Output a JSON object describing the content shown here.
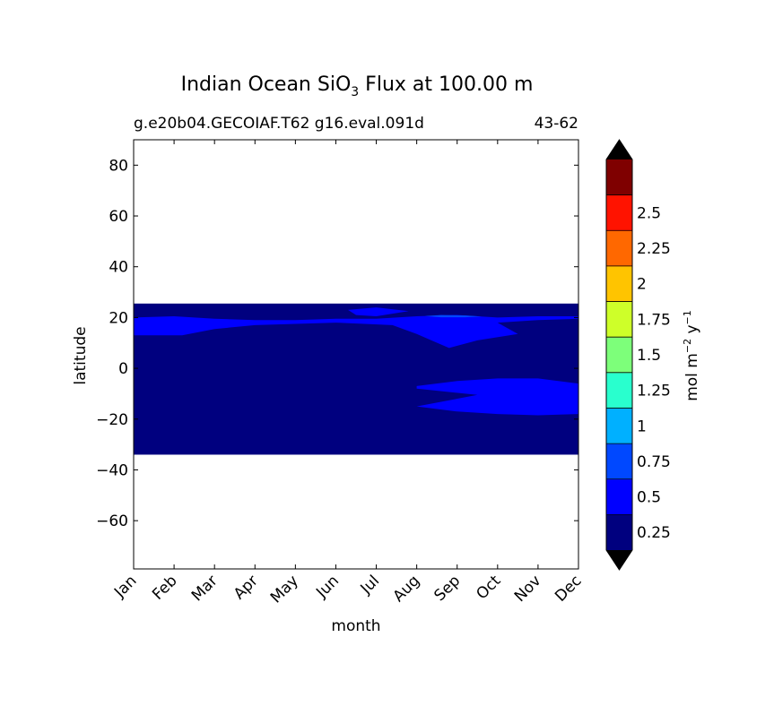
{
  "chart_data": {
    "type": "heatmap",
    "title": {
      "prefix": "Indian Ocean SiO",
      "subscript": "3",
      "suffix": " Flux at 100.00 m"
    },
    "subtitle_left": "g.e20b04.GECOIAF.T62 g16.eval.091d",
    "subtitle_right": "43-62",
    "xlabel": "month",
    "ylabel": "latitude",
    "x_tick_labels": [
      "Jan",
      "Feb",
      "Mar",
      "Apr",
      "May",
      "Jun",
      "Jul",
      "Aug",
      "Sep",
      "Oct",
      "Nov",
      "Dec"
    ],
    "y_ticks": [
      80,
      60,
      40,
      20,
      0,
      -20,
      -40,
      -60
    ],
    "y_tick_labels": [
      "80",
      "60",
      "40",
      "20",
      "0",
      "−20",
      "−40",
      "−60"
    ],
    "xlim": [
      1,
      12
    ],
    "ylim": [
      -79,
      90
    ],
    "data_extent": {
      "lat_min": -34,
      "lat_max": 25.5
    },
    "background_level_color": "#00007f",
    "regions": [
      {
        "level": "0.25-0.5",
        "color": "#0000ff",
        "points": [
          [
            1,
            20
          ],
          [
            2,
            20.5
          ],
          [
            3,
            19.5
          ],
          [
            4,
            19
          ],
          [
            5,
            19
          ],
          [
            6,
            19.5
          ],
          [
            7,
            19.5
          ],
          [
            8,
            20.5
          ],
          [
            9,
            21
          ],
          [
            10,
            20
          ],
          [
            11,
            20.5
          ],
          [
            12,
            20.5
          ],
          [
            12,
            19.5
          ],
          [
            11,
            19
          ],
          [
            10,
            18
          ],
          [
            10.5,
            13.5
          ],
          [
            9.5,
            11
          ],
          [
            8.8,
            8
          ],
          [
            8,
            13.5
          ],
          [
            7.4,
            17
          ],
          [
            6,
            18
          ],
          [
            4,
            17
          ],
          [
            3,
            15.5
          ],
          [
            2.2,
            13
          ],
          [
            1,
            13
          ]
        ]
      },
      {
        "level": "0.25-0.5",
        "color": "#0000ff",
        "points": [
          [
            6.3,
            23
          ],
          [
            7,
            24
          ],
          [
            7.8,
            22.5
          ],
          [
            7,
            20.5
          ],
          [
            6.5,
            21
          ]
        ]
      },
      {
        "level": "0.25-0.5",
        "color": "#0000ff",
        "points": [
          [
            8,
            -7
          ],
          [
            9,
            -5
          ],
          [
            10,
            -4
          ],
          [
            11,
            -4
          ],
          [
            12,
            -6
          ],
          [
            12,
            -18
          ],
          [
            11,
            -18.5
          ],
          [
            10,
            -18
          ],
          [
            9,
            -17
          ],
          [
            8,
            -15
          ],
          [
            9.5,
            -10.5
          ],
          [
            8,
            -8
          ]
        ]
      },
      {
        "level": "0.5-0.75",
        "color": "#0048ff",
        "points": [
          [
            8.2,
            20.6
          ],
          [
            8.6,
            21
          ],
          [
            9.2,
            20.8
          ],
          [
            9.6,
            20.4
          ],
          [
            9.2,
            20.1
          ],
          [
            8.6,
            20.1
          ]
        ]
      }
    ],
    "colorbar": {
      "label_main": "mol m",
      "label_exp1": "−2",
      "label_mid": " y",
      "label_exp2": "−1",
      "extend": "both",
      "under_color": "#000000",
      "over_color": "#000000",
      "levels": [
        0,
        0.25,
        0.5,
        0.75,
        1,
        1.25,
        1.5,
        1.75,
        2,
        2.25,
        2.5,
        2.75
      ],
      "colors": [
        "#00007f",
        "#0000ff",
        "#0048ff",
        "#00b0ff",
        "#29ffce",
        "#7dff7a",
        "#ceff29",
        "#ffc400",
        "#ff6800",
        "#ff1300",
        "#7f0000"
      ],
      "tick_labels": [
        "0.25",
        "0.5",
        "0.75",
        "1",
        "1.25",
        "1.5",
        "1.75",
        "2",
        "2.25",
        "2.5"
      ]
    }
  }
}
